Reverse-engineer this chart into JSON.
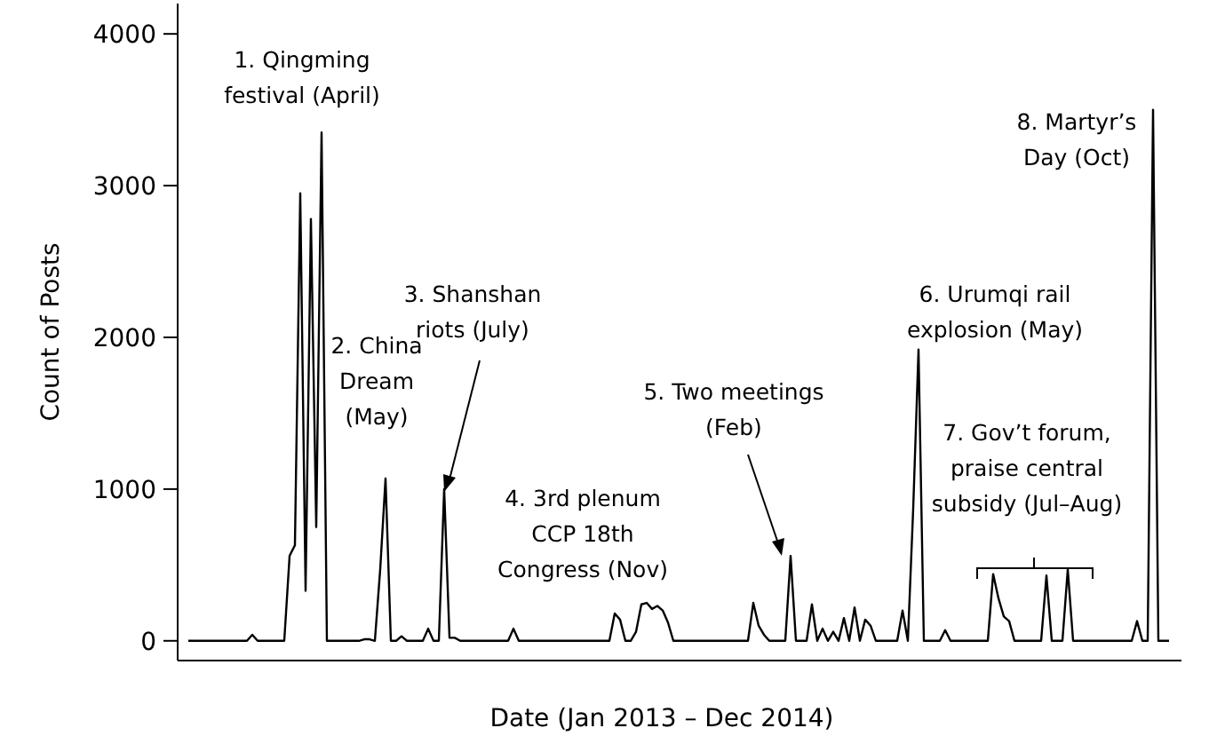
{
  "chart_data": {
    "type": "line",
    "xlabel": "Date (Jan 2013 – Dec 2014)",
    "ylabel": "Count of Posts",
    "ylim": [
      -130,
      4200
    ],
    "yticks": [
      0,
      1000,
      2000,
      3000,
      4000
    ],
    "grid": false,
    "marker": "none",
    "line_style": "solid",
    "categories": [
      null,
      null,
      null,
      null,
      null,
      null,
      null,
      null,
      null,
      null,
      null,
      null,
      null,
      null,
      null,
      null,
      null,
      null,
      null,
      null,
      null,
      null,
      null,
      null,
      null,
      null,
      null,
      null,
      null,
      null,
      null,
      null,
      null,
      null,
      null,
      null,
      null,
      null,
      null,
      null,
      null,
      null,
      null,
      null,
      null,
      null,
      null,
      null,
      null,
      null,
      null,
      null,
      null,
      null,
      null,
      null,
      null,
      null,
      null,
      null,
      null,
      null,
      null,
      null,
      null,
      null,
      null,
      null,
      null,
      null,
      null,
      null,
      null,
      null,
      null,
      null,
      null,
      null,
      null,
      null,
      null,
      null,
      null,
      null,
      null,
      null,
      null,
      null,
      null,
      null,
      null,
      null,
      null,
      null,
      null,
      null,
      null,
      null,
      null,
      null,
      null,
      null,
      null,
      null,
      null,
      null,
      null,
      null,
      null,
      null,
      null,
      null,
      null,
      null,
      null,
      null,
      null,
      null,
      null,
      null,
      null,
      null,
      null,
      null,
      null,
      null,
      null,
      null,
      null,
      null,
      null,
      null,
      null,
      null,
      null,
      null,
      null,
      null,
      null,
      null,
      null,
      null,
      null,
      null,
      null,
      null,
      null,
      null,
      null,
      null,
      null,
      null,
      null,
      null,
      null,
      null,
      null,
      null,
      null,
      null,
      null,
      null,
      null,
      null,
      null,
      null,
      null,
      null,
      null,
      null,
      null,
      null,
      null,
      null,
      null,
      null,
      null,
      null,
      null,
      null,
      null,
      null,
      null,
      null,
      null
    ],
    "series": [
      {
        "color": "#000000",
        "values": [
          0,
          0,
          0,
          0,
          0,
          0,
          0,
          0,
          0,
          0,
          0,
          0,
          40,
          0,
          0,
          0,
          0,
          0,
          0,
          560,
          630,
          2950,
          330,
          2780,
          750,
          3350,
          0,
          0,
          0,
          0,
          0,
          0,
          0,
          10,
          10,
          0,
          470,
          1070,
          0,
          0,
          30,
          0,
          0,
          0,
          0,
          80,
          0,
          0,
          1000,
          20,
          20,
          0,
          0,
          0,
          0,
          0,
          0,
          0,
          0,
          0,
          0,
          80,
          0,
          0,
          0,
          0,
          0,
          0,
          0,
          0,
          0,
          0,
          0,
          0,
          0,
          0,
          0,
          0,
          0,
          0,
          180,
          140,
          0,
          0,
          60,
          240,
          250,
          210,
          230,
          200,
          120,
          0,
          0,
          0,
          0,
          0,
          0,
          0,
          0,
          0,
          0,
          0,
          0,
          0,
          0,
          0,
          250,
          100,
          40,
          0,
          0,
          0,
          0,
          560,
          0,
          0,
          0,
          240,
          0,
          80,
          0,
          60,
          0,
          150,
          0,
          220,
          0,
          140,
          100,
          0,
          0,
          0,
          0,
          0,
          200,
          0,
          870,
          1920,
          0,
          0,
          0,
          0,
          70,
          0,
          0,
          0,
          0,
          0,
          0,
          0,
          0,
          440,
          280,
          160,
          130,
          0,
          0,
          0,
          0,
          0,
          0,
          430,
          0,
          0,
          0,
          470,
          0,
          0,
          0,
          0,
          0,
          0,
          0,
          0,
          0,
          0,
          0,
          0,
          130,
          0,
          0,
          3500,
          0,
          0,
          0
        ]
      }
    ],
    "annotations": [
      "1. Qingming festival (April)",
      "2. China Dream (May)",
      "3. Shanshan riots (July)",
      "4. 3rd plenum CCP 18th Congress (Nov)",
      "5. Two meetings (Feb)",
      "6. Urumqi rail explosion (May)",
      "7. Gov’t forum, praise central subsidy (Jul–Aug)",
      "8. Martyr’s Day (Oct)"
    ]
  }
}
